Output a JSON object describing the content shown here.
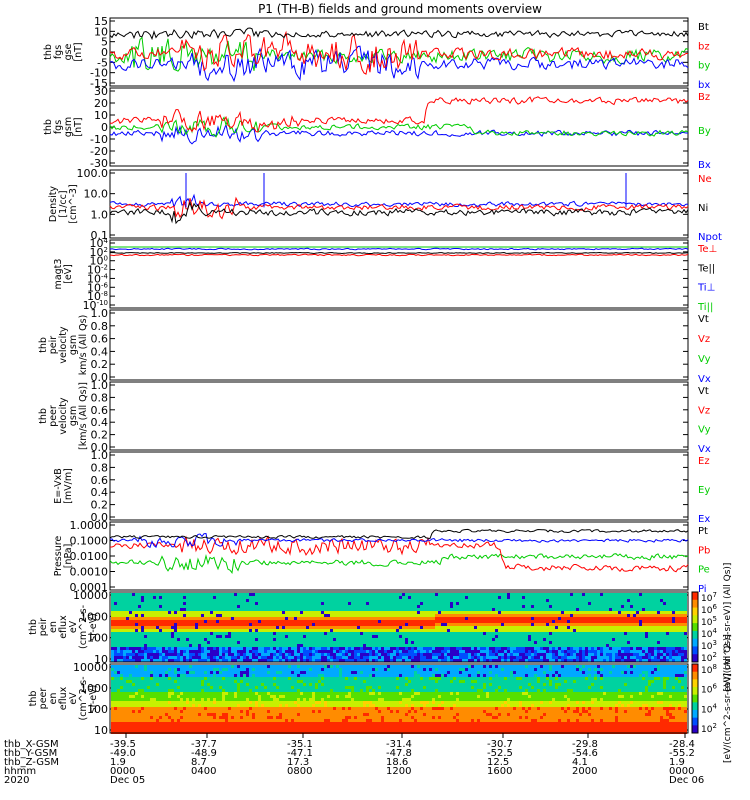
{
  "title": "P1 (TH-B) fields and ground moments overview",
  "colors": {
    "black": "#000000",
    "red": "#ff0000",
    "green": "#00cc00",
    "blue": "#0000ff"
  },
  "chart_data": [
    {
      "type": "line",
      "id": "p1",
      "ylabel": [
        "thb",
        "fgs",
        "gse",
        "[nT]"
      ],
      "yticks": [
        "15",
        "10",
        "5",
        "0",
        "-5",
        "-10",
        "-15"
      ],
      "ylim": [
        -15,
        15
      ],
      "legend": [
        {
          "text": "Bt",
          "color": "black"
        },
        {
          "text": "bz",
          "color": "red"
        },
        {
          "text": "by",
          "color": "green"
        },
        {
          "text": "bx",
          "color": "blue"
        }
      ]
    },
    {
      "type": "line",
      "id": "p2",
      "ylabel": [
        "thb",
        "fgs",
        "gsm",
        "[nT]"
      ],
      "yticks": [
        "30",
        "20",
        "10",
        "0",
        "-10",
        "-20",
        "-30"
      ],
      "ylim": [
        -30,
        30
      ],
      "legend": [
        {
          "text": "Bz",
          "color": "red"
        },
        {
          "text": "By",
          "color": "green"
        },
        {
          "text": "Bx",
          "color": "blue"
        }
      ]
    },
    {
      "type": "line",
      "id": "p3",
      "ylabel": [
        "Density",
        "[1/cc]",
        "[cm^-3]"
      ],
      "yticks": [
        "100.0",
        "10.0",
        "1.0",
        "0.1"
      ],
      "ylim": [
        0.1,
        100
      ],
      "legend": [
        {
          "text": "Ne",
          "color": "red"
        },
        {
          "text": "Ni",
          "color": "black"
        },
        {
          "text": "Npot",
          "color": "blue"
        }
      ]
    },
    {
      "type": "line",
      "id": "p4",
      "ylabel": [
        "magt3",
        "[eV]"
      ],
      "yticks": [
        "10^4",
        "10^2",
        "10^0",
        "10^-2",
        "10^-4",
        "10^-6",
        "10^-8",
        "10^-10"
      ],
      "legend": [
        {
          "text": "Te⊥",
          "color": "red"
        },
        {
          "text": "Te||",
          "color": "black"
        },
        {
          "text": "Ti⊥",
          "color": "blue"
        },
        {
          "text": "Ti||",
          "color": "green"
        }
      ]
    },
    {
      "type": "line",
      "id": "p5",
      "ylabel": [
        "thb",
        "peir",
        "velocity",
        "gsm",
        "km/s (All Qs)"
      ],
      "yticks": [
        "1.0",
        "0.8",
        "0.6",
        "0.4",
        "0.2",
        "0.0"
      ],
      "ylim": [
        0,
        1
      ],
      "legend": [
        {
          "text": "Vt",
          "color": "black"
        },
        {
          "text": "Vz",
          "color": "red"
        },
        {
          "text": "Vy",
          "color": "green"
        },
        {
          "text": "Vx",
          "color": "blue"
        }
      ]
    },
    {
      "type": "line",
      "id": "p6",
      "ylabel": [
        "thb",
        "peer",
        "velocity",
        "gsm",
        "[km/s (All Qs)]"
      ],
      "yticks": [
        "1.0",
        "0.8",
        "0.6",
        "0.4",
        "0.2",
        "0.0"
      ],
      "ylim": [
        0,
        1
      ],
      "legend": [
        {
          "text": "Vt",
          "color": "black"
        },
        {
          "text": "Vz",
          "color": "red"
        },
        {
          "text": "Vy",
          "color": "green"
        },
        {
          "text": "Vx",
          "color": "blue"
        }
      ]
    },
    {
      "type": "line",
      "id": "p7",
      "ylabel": [
        "E=-VxB",
        "[mV/m]"
      ],
      "yticks": [
        "1.0",
        "0.8",
        "0.6",
        "0.4",
        "0.2",
        "0.0"
      ],
      "ylim": [
        0,
        1
      ],
      "legend": [
        {
          "text": "Ez",
          "color": "red"
        },
        {
          "text": "Ey",
          "color": "green"
        },
        {
          "text": "Ex",
          "color": "blue"
        }
      ]
    },
    {
      "type": "line",
      "id": "p8",
      "ylabel": [
        "Pressure",
        "[nPa]"
      ],
      "yticks": [
        "1.0000",
        "0.1000",
        "0.0100",
        "0.0010",
        "0.0001"
      ],
      "ylim": [
        0.0001,
        1
      ],
      "legend": [
        {
          "text": "Pt",
          "color": "black"
        },
        {
          "text": "Pb",
          "color": "red"
        },
        {
          "text": "Pe",
          "color": "green"
        },
        {
          "text": "Pi",
          "color": "blue"
        }
      ]
    },
    {
      "type": "heatmap",
      "id": "p9",
      "ylabel": [
        "thb",
        "peir",
        "en",
        "eflux",
        "eV",
        "(cm^2-s-",
        "sr-eV)"
      ],
      "yticks": [
        "10000",
        "1000",
        "100",
        "10"
      ],
      "colorbar": {
        "ticks": [
          "10^7",
          "10^6",
          "10^5",
          "10^4",
          "10^3",
          "10^2"
        ],
        "label": "[eV/(cm^2-s-sr-eV)] (All Qs)]"
      }
    },
    {
      "type": "heatmap",
      "id": "p10",
      "ylabel": [
        "thb",
        "peer",
        "en",
        "eflux",
        "eV",
        "(cm^2-s-",
        "sr-eV)"
      ],
      "yticks": [
        "10000",
        "1000",
        "100",
        "10"
      ],
      "colorbar": {
        "ticks": [
          "10^8",
          "10^6",
          "10^4",
          "10^2"
        ],
        "label": "[eV/(cm^2-s-sr-eV)] (All Qs)]"
      }
    }
  ],
  "xaxis": {
    "row_labels": [
      "thb_X-GSM",
      "thb_Y-GSM",
      "thb_Z-GSM",
      "hhmm",
      "2020"
    ],
    "columns": [
      {
        "values": [
          "-39.5",
          "-49.0",
          "1.9",
          "0000",
          "Dec 05"
        ]
      },
      {
        "values": [
          "-37.7",
          "-48.9",
          "8.7",
          "0400",
          ""
        ]
      },
      {
        "values": [
          "-35.1",
          "-47.1",
          "17.3",
          "0800",
          ""
        ]
      },
      {
        "values": [
          "-31.4",
          "-47.8",
          "18.6",
          "1200",
          ""
        ]
      },
      {
        "values": [
          "-30.7",
          "-52.5",
          "12.5",
          "1600",
          ""
        ]
      },
      {
        "values": [
          "-29.8",
          "-54.6",
          "4.1",
          "2000",
          ""
        ]
      },
      {
        "values": [
          "-28.4",
          "-55.2",
          "1.9",
          "0000",
          "Dec 06"
        ]
      }
    ]
  }
}
